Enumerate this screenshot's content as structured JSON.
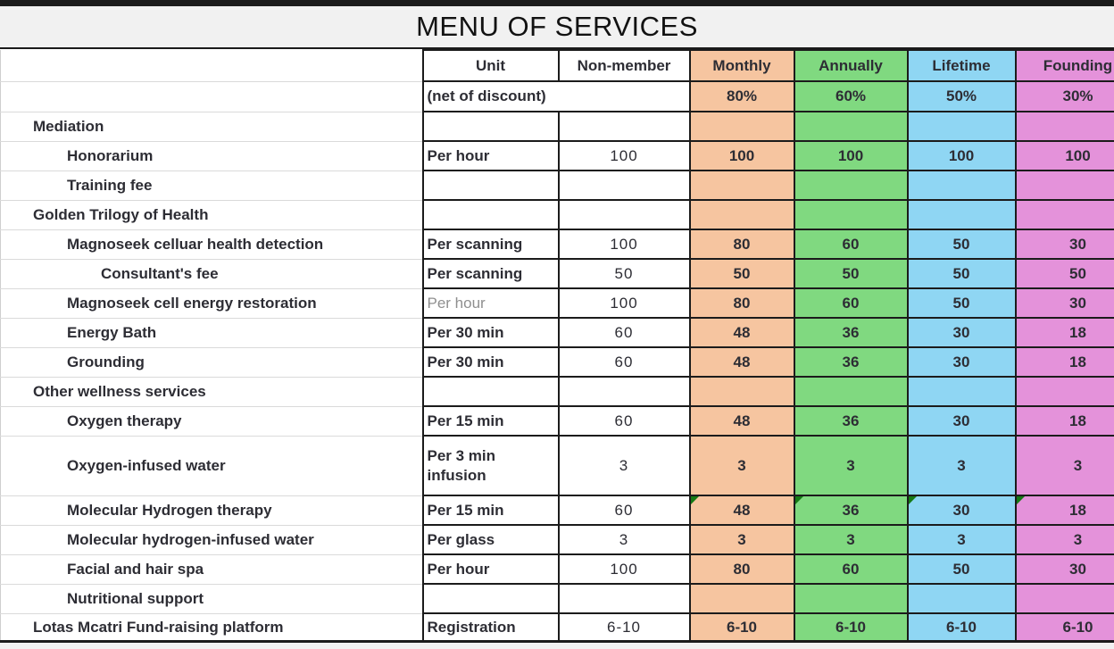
{
  "title": "MENU OF SERVICES",
  "header": {
    "unit_label": "Unit",
    "non_member_label": "Non-member",
    "discount_note": "(net of discount)",
    "tiers": [
      {
        "label": "Monthly",
        "discount": "80%",
        "color": "#f6c5a0"
      },
      {
        "label": "Annually",
        "discount": "60%",
        "color": "#80d980"
      },
      {
        "label": "Lifetime",
        "discount": "50%",
        "color": "#8fd6f3"
      },
      {
        "label": "Founding",
        "discount": "30%",
        "color": "#e492da"
      }
    ]
  },
  "colors": {
    "border": "#1b1b1b",
    "flag_green": "#157a15",
    "band_gray": "#f1f1f1",
    "muted_text": "#8f8f8f"
  },
  "rows": [
    {
      "service": "Mediation",
      "indent": 1,
      "unit": "",
      "non_member": "",
      "values": [
        "",
        "",
        "",
        ""
      ]
    },
    {
      "service": "Honorarium",
      "indent": 2,
      "unit": "Per hour",
      "non_member": "100",
      "values": [
        "100",
        "100",
        "100",
        "100"
      ]
    },
    {
      "service": "Training fee",
      "indent": 2,
      "unit": "",
      "non_member": "",
      "values": [
        "",
        "",
        "",
        ""
      ]
    },
    {
      "service": "Golden Trilogy of Health",
      "indent": 1,
      "unit": "",
      "non_member": "",
      "values": [
        "",
        "",
        "",
        ""
      ]
    },
    {
      "service": "Magnoseek celluar health detection",
      "indent": 2,
      "unit": "Per scanning",
      "non_member": "100",
      "values": [
        "80",
        "60",
        "50",
        "30"
      ]
    },
    {
      "service": "Consultant's fee",
      "indent": 3,
      "unit": "Per scanning",
      "non_member": "50",
      "values": [
        "50",
        "50",
        "50",
        "50"
      ]
    },
    {
      "service": "Magnoseek cell energy restoration",
      "indent": 2,
      "unit": "Per hour",
      "unit_muted": true,
      "non_member": "100",
      "values": [
        "80",
        "60",
        "50",
        "30"
      ]
    },
    {
      "service": "Energy Bath",
      "indent": 2,
      "unit": "Per 30 min",
      "non_member": "60",
      "values": [
        "48",
        "36",
        "30",
        "18"
      ]
    },
    {
      "service": "Grounding",
      "indent": 2,
      "unit": "Per 30 min",
      "non_member": "60",
      "values": [
        "48",
        "36",
        "30",
        "18"
      ]
    },
    {
      "service": "Other wellness services",
      "indent": 1,
      "unit": "",
      "non_member": "",
      "values": [
        "",
        "",
        "",
        ""
      ]
    },
    {
      "service": "Oxygen therapy",
      "indent": 2,
      "unit": "Per 15 min",
      "non_member": "60",
      "values": [
        "48",
        "36",
        "30",
        "18"
      ]
    },
    {
      "service": "Oxygen-infused water",
      "indent": 2,
      "unit": "Per 3 min infusion",
      "non_member": "3",
      "values": [
        "3",
        "3",
        "3",
        "3"
      ],
      "tall": true
    },
    {
      "service": "Molecular Hydrogen therapy",
      "indent": 2,
      "unit": "Per 15 min",
      "non_member": "60",
      "values": [
        "48",
        "36",
        "30",
        "18"
      ],
      "comment_flags": true
    },
    {
      "service": "Molecular hydrogen-infused  water",
      "indent": 2,
      "unit": "Per glass",
      "non_member": "3",
      "values": [
        "3",
        "3",
        "3",
        "3"
      ]
    },
    {
      "service": "Facial and hair spa",
      "indent": 2,
      "unit": "Per hour",
      "non_member": "100",
      "values": [
        "80",
        "60",
        "50",
        "30"
      ]
    },
    {
      "service": "Nutritional support",
      "indent": 2,
      "unit": "",
      "non_member": "",
      "values": [
        "",
        "",
        "",
        ""
      ]
    },
    {
      "service": "Lotas Mcatri Fund-raising platform",
      "indent": 1,
      "unit": "Registration",
      "non_member": "6-10",
      "values": [
        "6-10",
        "6-10",
        "6-10",
        "6-10"
      ]
    }
  ]
}
